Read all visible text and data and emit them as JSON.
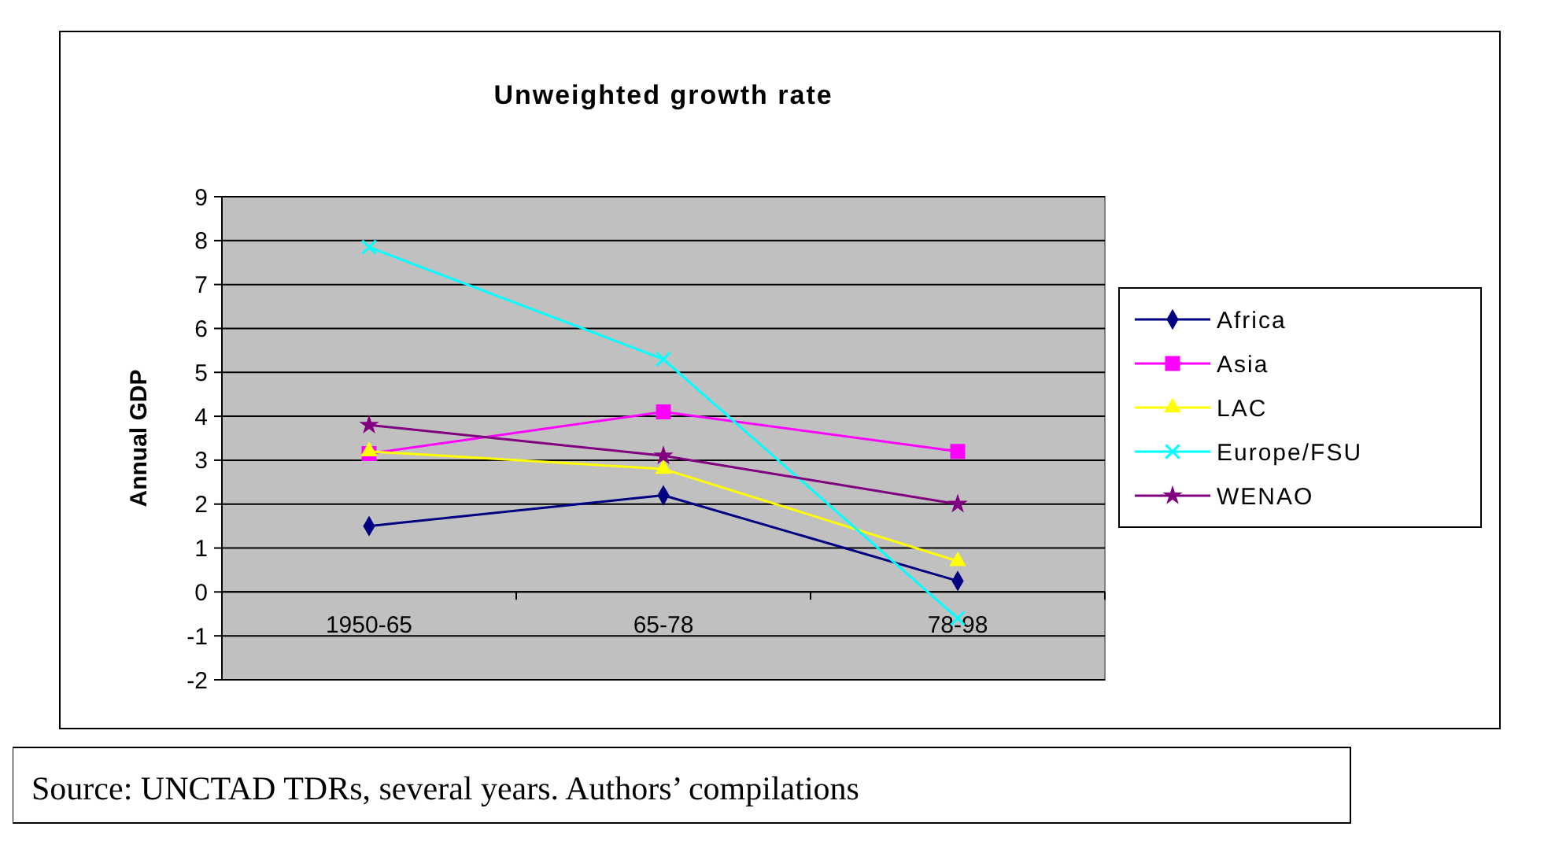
{
  "chart_data": {
    "type": "line",
    "title": "Unweighted growth rate",
    "ylabel": "Annual GDP",
    "categories": [
      "1950-65",
      "65-78",
      "78-98"
    ],
    "series": [
      {
        "name": "Africa",
        "color": "#000080",
        "marker": "diamond",
        "values": [
          1.5,
          2.2,
          0.25
        ]
      },
      {
        "name": "Asia",
        "color": "#ff00ff",
        "marker": "square",
        "values": [
          3.15,
          4.1,
          3.2
        ]
      },
      {
        "name": "LAC",
        "color": "#ffff00",
        "marker": "triangle",
        "values": [
          3.2,
          2.8,
          0.7
        ]
      },
      {
        "name": "Europe/FSU",
        "color": "#00ffff",
        "marker": "cross",
        "values": [
          7.85,
          5.3,
          -0.6
        ]
      },
      {
        "name": "WENAO",
        "color": "#800080",
        "marker": "star",
        "values": [
          3.8,
          3.1,
          2.0
        ]
      }
    ],
    "ylim": [
      -2,
      9
    ],
    "yticks": [
      -2,
      -1,
      0,
      1,
      2,
      3,
      4,
      5,
      6,
      7,
      8,
      9
    ],
    "grid": "y",
    "legend": "right",
    "annotations": [
      "Source: UNCTAD TDRs, several years. Authors’ compilations"
    ]
  }
}
